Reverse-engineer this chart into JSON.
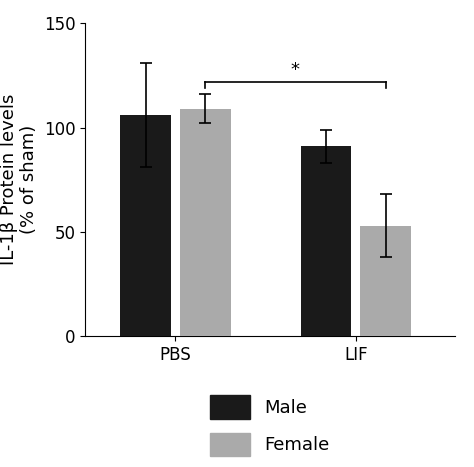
{
  "groups": [
    "PBS",
    "LIF"
  ],
  "male_values": [
    106,
    91
  ],
  "female_values": [
    109,
    53
  ],
  "male_errors": [
    25,
    8
  ],
  "female_errors": [
    7,
    15
  ],
  "male_color": "#1a1a1a",
  "female_color": "#aaaaaa",
  "ylabel_line1": "IL-1β Protein levels",
  "ylabel_line2": "(% of sham)",
  "ylim": [
    0,
    150
  ],
  "yticks": [
    0,
    50,
    100,
    150
  ],
  "bar_width": 0.28,
  "group_centers": [
    1.0,
    2.0
  ],
  "bar_gap": 0.05,
  "significance_y": 122,
  "bracket_drop": 3,
  "significance_text": "*",
  "legend_labels": [
    "Male",
    "Female"
  ],
  "tick_fontsize": 12,
  "label_fontsize": 13,
  "legend_fontsize": 13,
  "xlim": [
    0.5,
    2.55
  ]
}
